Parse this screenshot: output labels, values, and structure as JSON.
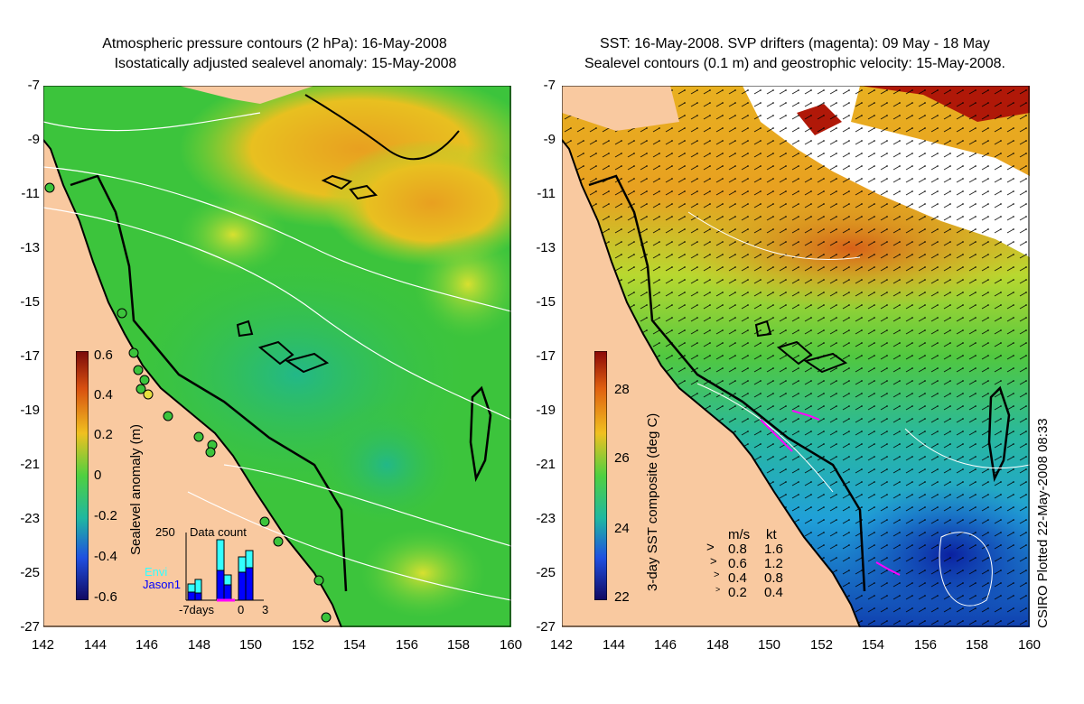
{
  "left_map": {
    "title_line1": "Atmospheric pressure contours (2 hPa): 16-May-2008",
    "title_line2": "Isostatically adjusted sealevel anomaly: 15-May-2008",
    "colorbar_label": "Sealevel anomaly (m)",
    "colorbar_ticks": [
      "0.6",
      "0.4",
      "0.2",
      "0",
      "-0.2",
      "-0.4",
      "-0.6"
    ],
    "inset": {
      "title": "Data count",
      "y_tick": "250",
      "series": [
        {
          "name": "Envi",
          "color": "#33ffff"
        },
        {
          "name": "Jason1",
          "color": "#0000ff"
        }
      ],
      "x_labels": [
        "-7days",
        "0",
        "3"
      ]
    }
  },
  "right_map": {
    "title_line1": "SST: 16-May-2008. SVP drifters (magenta): 09 May - 18 May",
    "title_line2": "Sealevel contours (0.1 m) and geostrophic velocity: 15-May-2008.",
    "colorbar_label": "3-day SST composite (deg C)",
    "colorbar_ticks": [
      "28",
      "26",
      "24",
      "22"
    ],
    "velocity_legend": {
      "header_ms": "m/s",
      "header_kt": "kt",
      "rows": [
        {
          "ms": "0.8",
          "kt": "1.6"
        },
        {
          "ms": "0.6",
          "kt": "1.2"
        },
        {
          "ms": "0.4",
          "kt": "0.8"
        },
        {
          "ms": "0.2",
          "kt": "0.4"
        }
      ]
    }
  },
  "axes": {
    "x_ticks": [
      "142",
      "144",
      "146",
      "148",
      "150",
      "152",
      "154",
      "156",
      "158",
      "160"
    ],
    "y_ticks": [
      "-7",
      "-9",
      "-11",
      "-13",
      "-15",
      "-17",
      "-19",
      "-21",
      "-23",
      "-25",
      "-27"
    ]
  },
  "stamp": "CSIRO Plotted 22-May-2008 08:33",
  "colors": {
    "land": "#f9c9a0",
    "sla_base": "#3cc43c",
    "sst_warm": "#e07a20"
  }
}
